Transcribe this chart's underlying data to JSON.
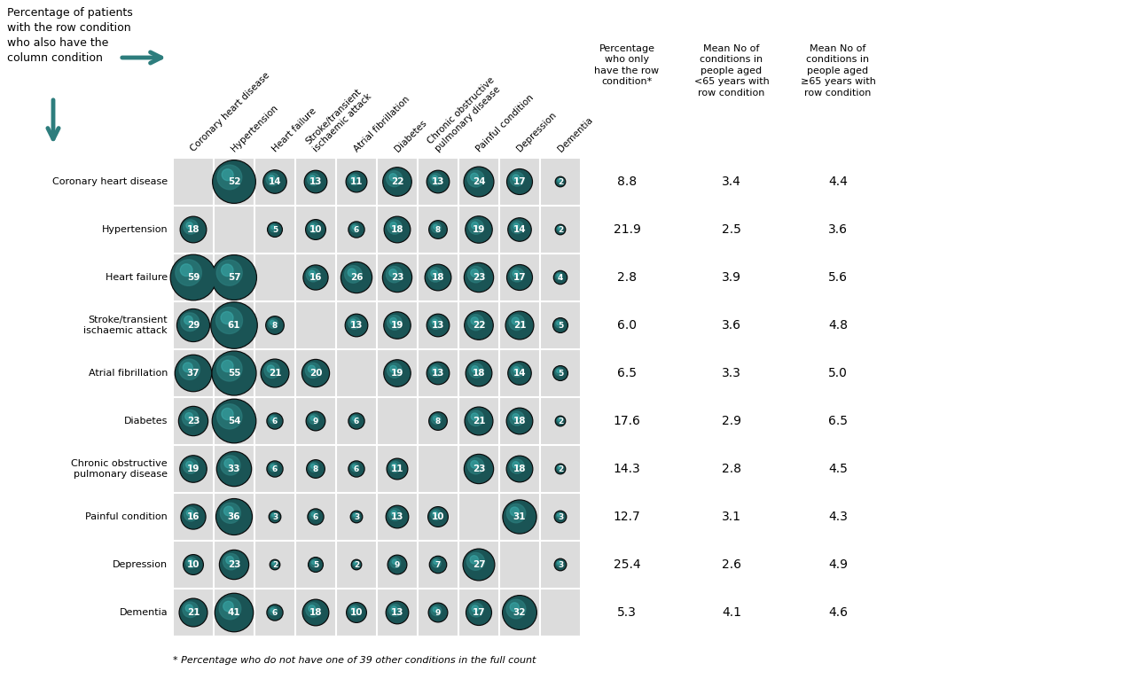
{
  "conditions": [
    "Coronary heart disease",
    "Hypertension",
    "Heart failure",
    "Stroke/transient\nischaemic attack",
    "Atrial fibrillation",
    "Diabetes",
    "Chronic obstructive\npulmonary disease",
    "Painful condition",
    "Depression",
    "Dementia"
  ],
  "col_labels": [
    "Coronary heart disease",
    "Hypertension",
    "Heart failure",
    "Stroke/transient\nischaemic attack",
    "Atrial fibrillation",
    "Diabetes",
    "Chronic obstructive\npulmonary disease",
    "Painful condition",
    "Depression",
    "Dementia"
  ],
  "matrix": [
    [
      null,
      52,
      14,
      13,
      11,
      22,
      13,
      24,
      17,
      2
    ],
    [
      18,
      null,
      5,
      10,
      6,
      18,
      8,
      19,
      14,
      2
    ],
    [
      59,
      57,
      null,
      16,
      26,
      23,
      18,
      23,
      17,
      4
    ],
    [
      29,
      61,
      8,
      null,
      13,
      19,
      13,
      22,
      21,
      5
    ],
    [
      37,
      55,
      21,
      20,
      null,
      19,
      13,
      18,
      14,
      5
    ],
    [
      23,
      54,
      6,
      9,
      6,
      null,
      8,
      21,
      18,
      2
    ],
    [
      19,
      33,
      6,
      8,
      6,
      11,
      null,
      23,
      18,
      2
    ],
    [
      16,
      36,
      3,
      6,
      3,
      13,
      10,
      null,
      31,
      3
    ],
    [
      10,
      23,
      2,
      5,
      2,
      9,
      7,
      27,
      null,
      3
    ],
    [
      21,
      41,
      6,
      18,
      10,
      13,
      9,
      17,
      32,
      null
    ]
  ],
  "pct_only": [
    8.8,
    21.9,
    2.8,
    6.0,
    6.5,
    17.6,
    14.3,
    12.7,
    25.4,
    5.3
  ],
  "mean_lt65": [
    3.4,
    2.5,
    3.9,
    3.6,
    3.3,
    2.9,
    2.8,
    3.1,
    2.6,
    4.1
  ],
  "mean_ge65": [
    4.4,
    3.6,
    5.6,
    4.8,
    5.0,
    6.5,
    4.5,
    4.3,
    4.9,
    4.6
  ],
  "bubble_dark": "#1a5455",
  "bubble_mid": "#2a7a7a",
  "bubble_light": "#3aabab",
  "bubble_edge": "#0a0a0a",
  "grid_bg": "#dcdcdc",
  "grid_line": "#ffffff",
  "arrow_color": "#2d7d7d",
  "footnote": "* Percentage who do not have one of 39 other conditions in the full count",
  "title_left": "Percentage of patients\nwith the row condition\nwho also have the\ncolumn condition",
  "header1": "Percentage\nwho only\nhave the row\ncondition*",
  "header2": "Mean No of\nconditions in\npeople aged\n<65 years with\nrow condition",
  "header3": "Mean No of\nconditions in\npeople aged\n≥65 years with\nrow condition"
}
